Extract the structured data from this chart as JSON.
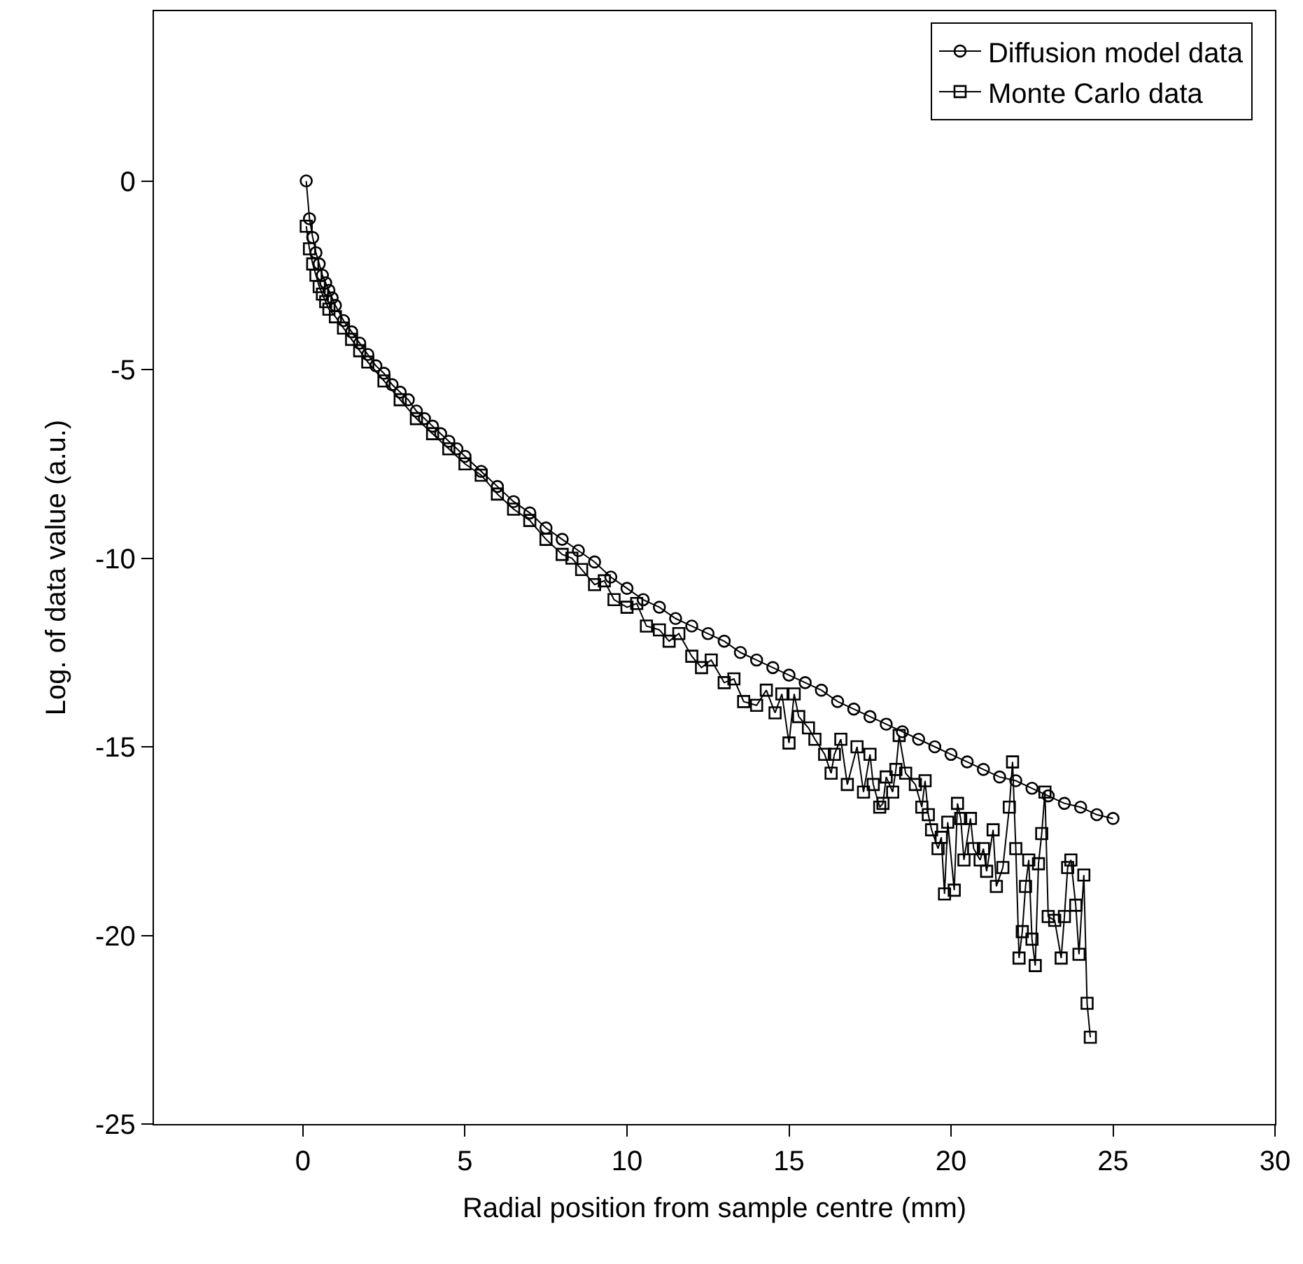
{
  "chart_data": {
    "type": "line",
    "xlabel": "Radial position from sample centre (mm)",
    "ylabel": "Log. of data value (a.u.)",
    "xlim": [
      -4.6,
      30
    ],
    "xticks": [
      0,
      5,
      10,
      15,
      20,
      25,
      30
    ],
    "ylim": [
      -25,
      4.5
    ],
    "yticks": [
      -25,
      -20,
      -15,
      -10,
      -5,
      0
    ],
    "legend": "top right",
    "series": [
      {
        "name": "Diffusion model data",
        "color": "#000000",
        "marker": "circle",
        "x": [
          0.1,
          0.2,
          0.3,
          0.4,
          0.5,
          0.6,
          0.7,
          0.8,
          0.9,
          1.0,
          1.25,
          1.5,
          1.75,
          2.0,
          2.25,
          2.5,
          2.75,
          3.0,
          3.25,
          3.5,
          3.75,
          4.0,
          4.25,
          4.5,
          4.75,
          5.0,
          5.5,
          6.0,
          6.5,
          7.0,
          7.5,
          8.0,
          8.5,
          9.0,
          9.5,
          10.0,
          10.5,
          11.0,
          11.5,
          12.0,
          12.5,
          13.0,
          13.5,
          14.0,
          14.5,
          15.0,
          15.5,
          16.0,
          16.5,
          17.0,
          17.5,
          18.0,
          18.5,
          19.0,
          19.5,
          20.0,
          20.5,
          21.0,
          21.5,
          22.0,
          22.5,
          23.0,
          23.5,
          24.0,
          24.5,
          25.0
        ],
        "values": [
          0,
          -1.0,
          -1.5,
          -1.9,
          -2.2,
          -2.5,
          -2.7,
          -2.9,
          -3.1,
          -3.3,
          -3.7,
          -4.0,
          -4.3,
          -4.6,
          -4.9,
          -5.1,
          -5.4,
          -5.6,
          -5.8,
          -6.1,
          -6.3,
          -6.5,
          -6.7,
          -6.9,
          -7.1,
          -7.3,
          -7.7,
          -8.1,
          -8.5,
          -8.8,
          -9.2,
          -9.5,
          -9.8,
          -10.1,
          -10.5,
          -10.8,
          -11.1,
          -11.3,
          -11.6,
          -11.8,
          -12.0,
          -12.2,
          -12.5,
          -12.7,
          -12.9,
          -13.1,
          -13.3,
          -13.5,
          -13.8,
          -14.0,
          -14.2,
          -14.4,
          -14.6,
          -14.8,
          -15.0,
          -15.2,
          -15.4,
          -15.6,
          -15.8,
          -15.9,
          -16.1,
          -16.3,
          -16.5,
          -16.6,
          -16.8,
          -16.9
        ]
      },
      {
        "name": "Monte Carlo data",
        "color": "#000000",
        "marker": "square",
        "x": [
          0.1,
          0.2,
          0.3,
          0.4,
          0.5,
          0.6,
          0.7,
          0.8,
          1.0,
          1.25,
          1.5,
          1.75,
          2.0,
          2.5,
          3.0,
          3.5,
          4.0,
          4.5,
          5.0,
          5.5,
          6.0,
          6.5,
          7.0,
          7.5,
          8.0,
          8.3,
          8.6,
          9.0,
          9.3,
          9.6,
          10.0,
          10.3,
          10.6,
          11.0,
          11.3,
          11.6,
          12.0,
          12.3,
          12.6,
          13.0,
          13.3,
          13.6,
          14.0,
          14.3,
          14.57,
          14.78,
          15.0,
          15.16,
          15.3,
          15.6,
          15.8,
          16.1,
          16.3,
          16.4,
          16.6,
          16.8,
          17.1,
          17.3,
          17.5,
          17.6,
          17.8,
          17.9,
          18.0,
          18.2,
          18.3,
          18.4,
          18.6,
          18.9,
          19.1,
          19.2,
          19.3,
          19.4,
          19.6,
          19.7,
          19.8,
          19.9,
          20.1,
          20.2,
          20.3,
          20.4,
          20.6,
          20.7,
          20.9,
          21.0,
          21.1,
          21.3,
          21.4,
          21.6,
          21.8,
          21.9,
          22.0,
          22.1,
          22.2,
          22.3,
          22.4,
          22.5,
          22.6,
          22.7,
          22.8,
          22.9,
          23.0,
          23.2,
          23.4,
          23.5,
          23.6,
          23.7,
          23.85,
          23.95,
          24.1,
          24.2,
          24.3
        ],
        "values": [
          -1.2,
          -1.8,
          -2.2,
          -2.5,
          -2.8,
          -3.0,
          -3.2,
          -3.4,
          -3.6,
          -3.9,
          -4.2,
          -4.5,
          -4.8,
          -5.3,
          -5.8,
          -6.3,
          -6.7,
          -7.1,
          -7.5,
          -7.8,
          -8.3,
          -8.7,
          -9.0,
          -9.5,
          -9.9,
          -10.0,
          -10.3,
          -10.7,
          -10.6,
          -11.1,
          -11.3,
          -11.2,
          -11.8,
          -11.9,
          -12.2,
          -12.0,
          -12.6,
          -12.9,
          -12.7,
          -13.3,
          -13.2,
          -13.8,
          -13.9,
          -13.5,
          -14.1,
          -13.6,
          -14.9,
          -13.6,
          -14.2,
          -14.5,
          -14.8,
          -15.2,
          -15.7,
          -15.2,
          -14.8,
          -16.0,
          -15.0,
          -16.2,
          -15.2,
          -16.0,
          -16.6,
          -16.5,
          -15.8,
          -16.2,
          -15.6,
          -14.7,
          -15.7,
          -16.0,
          -16.6,
          -15.9,
          -16.8,
          -17.2,
          -17.7,
          -17.4,
          -18.9,
          -17.0,
          -18.8,
          -16.5,
          -16.9,
          -18.0,
          -16.9,
          -17.7,
          -18.0,
          -17.7,
          -18.3,
          -17.2,
          -18.7,
          -18.2,
          -16.6,
          -15.4,
          -17.7,
          -20.6,
          -19.9,
          -18.7,
          -18.0,
          -20.1,
          -20.8,
          -18.1,
          -17.3,
          -16.2,
          -19.5,
          -19.6,
          -20.6,
          -19.5,
          -18.2,
          -18.0,
          -19.2,
          -20.5,
          -18.4,
          -21.8,
          -22.7
        ]
      }
    ]
  }
}
